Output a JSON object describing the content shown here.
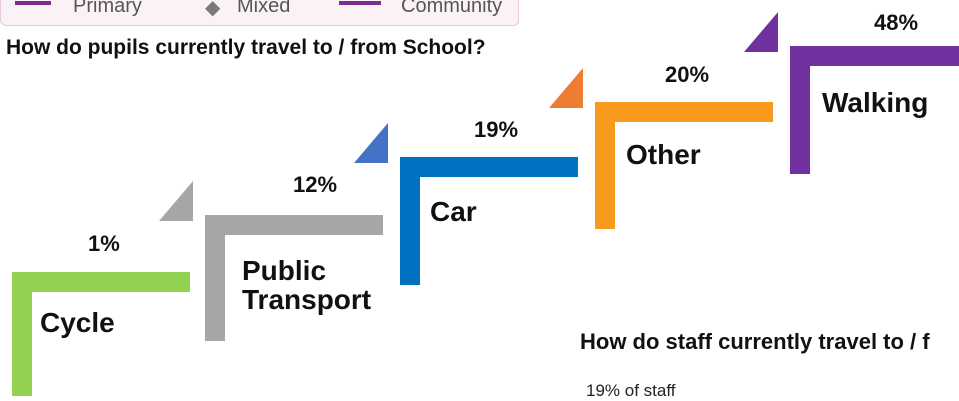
{
  "legend": {
    "items": [
      {
        "label": "Primary",
        "color": "#7a2f8e"
      },
      {
        "label": "Mixed",
        "color": "#7a7a7a"
      },
      {
        "label": "Community",
        "color": "#7a2f8e"
      }
    ]
  },
  "pupils_title": "How do pupils currently travel to / from School?",
  "staff_title": "How do staff currently travel to / f",
  "staff_note": "19% of staff",
  "chart_data": {
    "type": "bar",
    "title": "How do pupils currently travel to / from School?",
    "categories": [
      "Cycle",
      "Public Transport",
      "Car",
      "Other",
      "Walking"
    ],
    "display_labels": [
      [
        "Cycle"
      ],
      [
        "Public",
        "Transport"
      ],
      [
        "Car"
      ],
      [
        "Other"
      ],
      [
        "Walking"
      ]
    ],
    "values": [
      1,
      12,
      19,
      20,
      48
    ],
    "value_labels": [
      "1%",
      "12%",
      "19%",
      "20%",
      "48%"
    ],
    "colors": [
      "#92d050",
      "#a6a6a6",
      "#0070c0",
      "#f79a1e",
      "#7030a0"
    ],
    "triangle_colors": [
      "#a6a6a6",
      "#4472c4",
      "#ed7d31",
      "#7030a0"
    ],
    "legend": "none",
    "grid": false
  }
}
